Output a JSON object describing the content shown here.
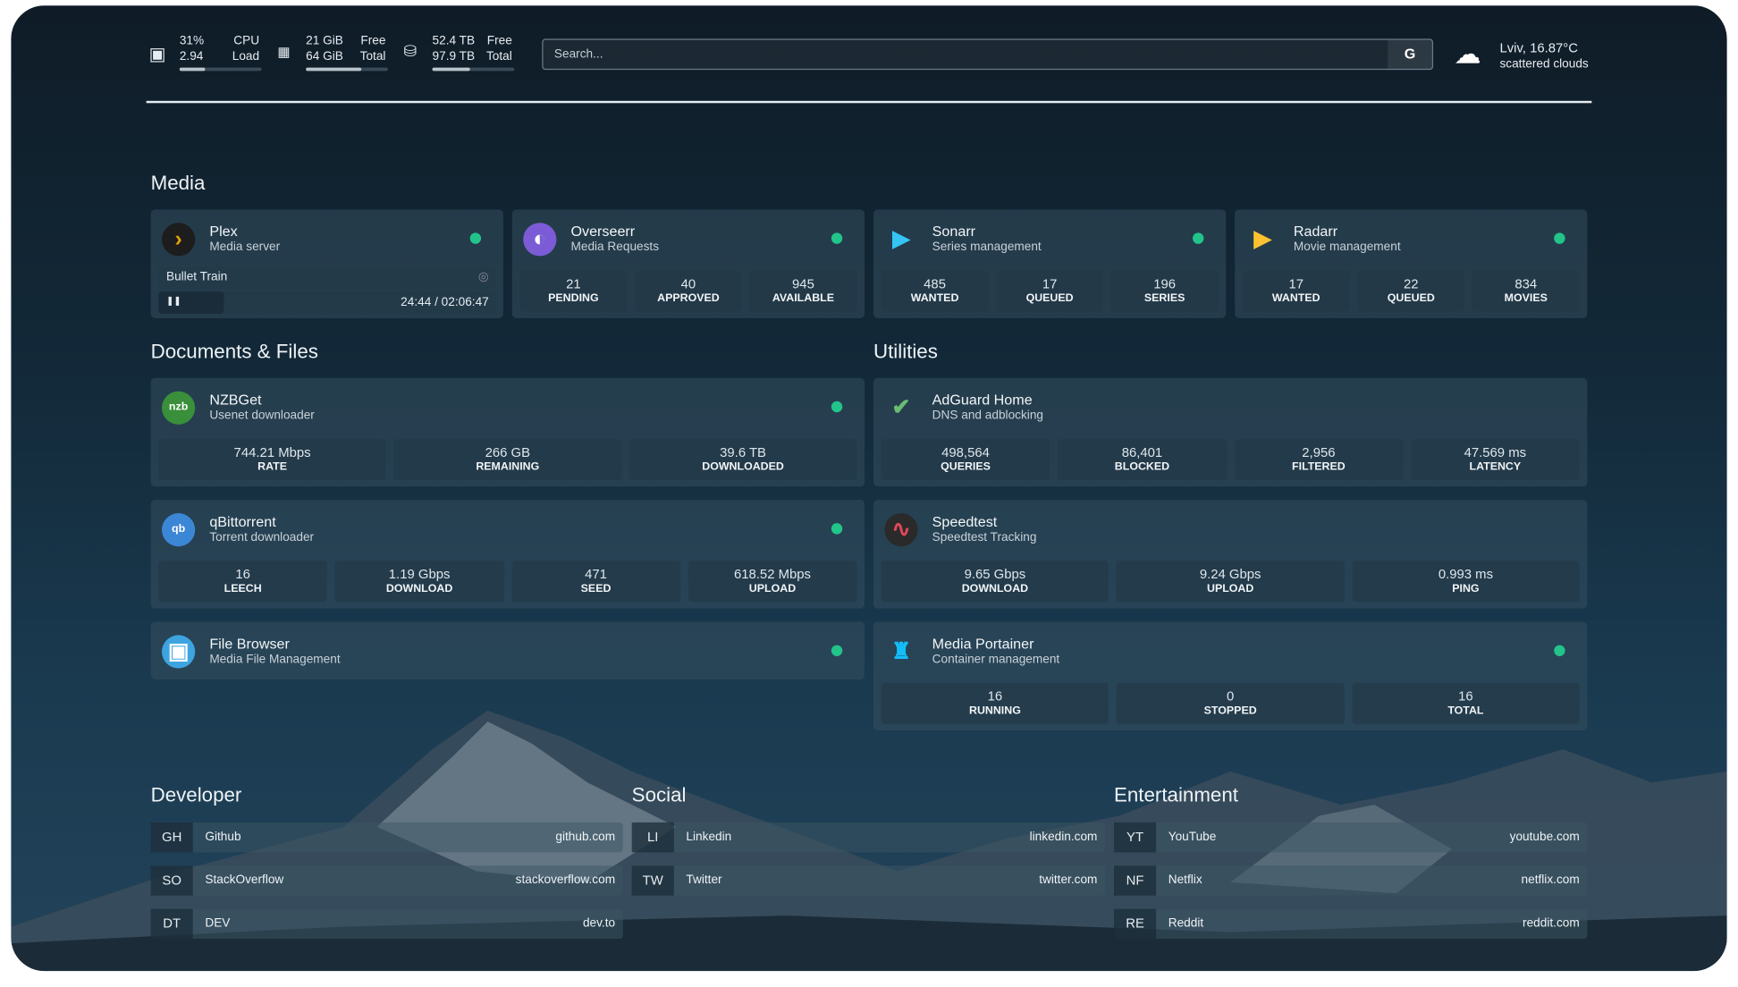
{
  "topbar": {
    "cpu": {
      "icon": "cpu-icon",
      "value1": "31%",
      "value2": "2.94",
      "label1": "CPU",
      "label2": "Load",
      "usage_percent": 31
    },
    "memory": {
      "icon": "memory-icon",
      "value1": "21 GiB",
      "value2": "64 GiB",
      "label1": "Free",
      "label2": "Total",
      "usage_percent": 67
    },
    "disk": {
      "icon": "disk-icon",
      "value1": "52.4 TB",
      "value2": "97.9 TB",
      "label1": "Free",
      "label2": "Total",
      "usage_percent": 46
    },
    "search": {
      "placeholder": "Search...",
      "button": "G"
    },
    "weather": {
      "icon": "cloud-icon",
      "location": "Lviv, 16.87°C",
      "condition": "scattered clouds"
    }
  },
  "sections": {
    "media": "Media",
    "documents": "Documents & Files",
    "utilities": "Utilities",
    "developer": "Developer",
    "social": "Social",
    "entertainment": "Entertainment"
  },
  "colors": {
    "status_online": "#22c48a",
    "background": "#132a3a"
  },
  "media": [
    {
      "name": "Plex",
      "desc": "Media server",
      "icon": "plex-icon",
      "now_playing": {
        "title": "Bullet Train",
        "time": "24:44 / 02:06:47",
        "progress": 0.195
      }
    },
    {
      "name": "Overseerr",
      "desc": "Media Requests",
      "icon": "overseerr-icon",
      "stats": [
        [
          "21",
          "PENDING"
        ],
        [
          "40",
          "APPROVED"
        ],
        [
          "945",
          "AVAILABLE"
        ]
      ]
    },
    {
      "name": "Sonarr",
      "desc": "Series management",
      "icon": "sonarr-icon",
      "stats": [
        [
          "485",
          "WANTED"
        ],
        [
          "17",
          "QUEUED"
        ],
        [
          "196",
          "SERIES"
        ]
      ]
    },
    {
      "name": "Radarr",
      "desc": "Movie management",
      "icon": "radarr-icon",
      "stats": [
        [
          "17",
          "WANTED"
        ],
        [
          "22",
          "QUEUED"
        ],
        [
          "834",
          "MOVIES"
        ]
      ]
    }
  ],
  "documents": [
    {
      "name": "NZBGet",
      "desc": "Usenet downloader",
      "icon": "nzbget-icon",
      "stats": [
        [
          "744.21 Mbps",
          "RATE"
        ],
        [
          "266 GB",
          "REMAINING"
        ],
        [
          "39.6 TB",
          "DOWNLOADED"
        ]
      ]
    },
    {
      "name": "qBittorrent",
      "desc": "Torrent downloader",
      "icon": "qbittorrent-icon",
      "stats": [
        [
          "16",
          "LEECH"
        ],
        [
          "1.19 Gbps",
          "DOWNLOAD"
        ],
        [
          "471",
          "SEED"
        ],
        [
          "618.52 Mbps",
          "UPLOAD"
        ]
      ]
    },
    {
      "name": "File Browser",
      "desc": "Media File Management",
      "icon": "file-browser-icon",
      "stats": []
    }
  ],
  "utilities": [
    {
      "name": "AdGuard Home",
      "desc": "DNS and adblocking",
      "icon": "adguard-icon",
      "nodot": true,
      "stats": [
        [
          "498,564",
          "QUERIES"
        ],
        [
          "86,401",
          "BLOCKED"
        ],
        [
          "2,956",
          "FILTERED"
        ],
        [
          "47.569 ms",
          "LATENCY"
        ]
      ]
    },
    {
      "name": "Speedtest",
      "desc": "Speedtest Tracking",
      "icon": "speedtest-icon",
      "nodot": true,
      "stats": [
        [
          "9.65 Gbps",
          "DOWNLOAD"
        ],
        [
          "9.24 Gbps",
          "UPLOAD"
        ],
        [
          "0.993 ms",
          "PING"
        ]
      ]
    },
    {
      "name": "Media Portainer",
      "desc": "Container management",
      "icon": "portainer-icon",
      "stats": [
        [
          "16",
          "RUNNING"
        ],
        [
          "0",
          "STOPPED"
        ],
        [
          "16",
          "TOTAL"
        ]
      ]
    }
  ],
  "bookmarks": {
    "developer": [
      [
        "GH",
        "Github",
        "github.com"
      ],
      [
        "SO",
        "StackOverflow",
        "stackoverflow.com"
      ],
      [
        "DT",
        "DEV",
        "dev.to"
      ]
    ],
    "social": [
      [
        "LI",
        "Linkedin",
        "linkedin.com"
      ],
      [
        "TW",
        "Twitter",
        "twitter.com"
      ]
    ],
    "entertainment": [
      [
        "YT",
        "YouTube",
        "youtube.com"
      ],
      [
        "NF",
        "Netflix",
        "netflix.com"
      ],
      [
        "RE",
        "Reddit",
        "reddit.com"
      ]
    ]
  }
}
